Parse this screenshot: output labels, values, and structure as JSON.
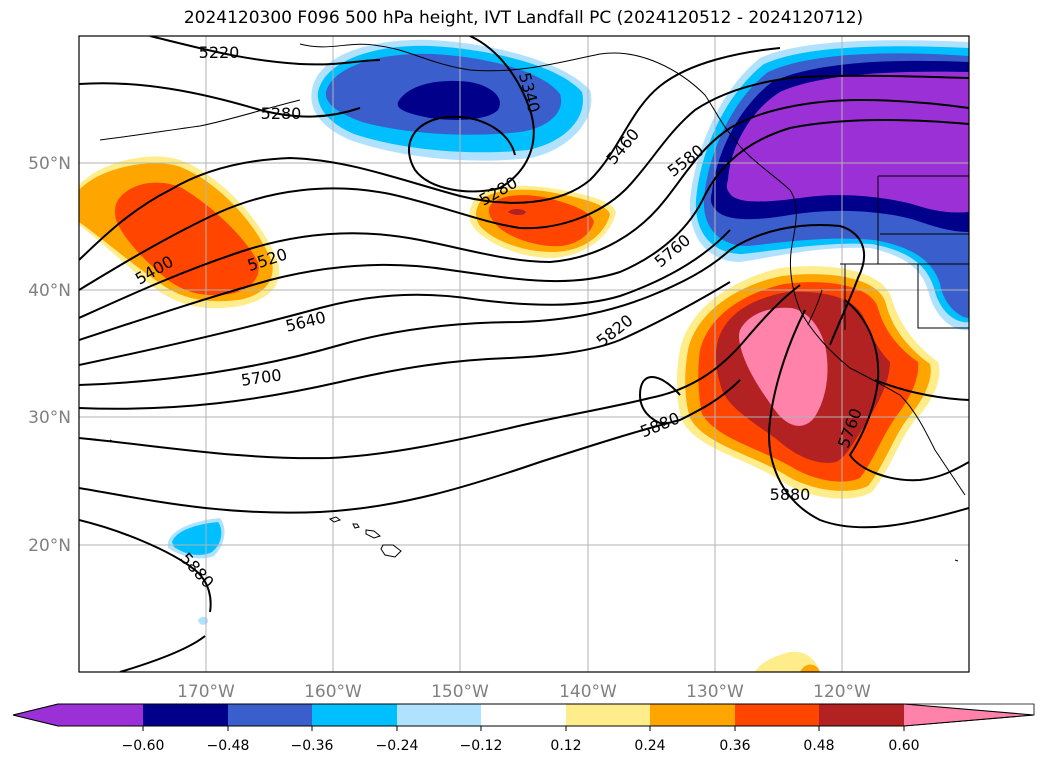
{
  "title": "2024120300 F096 500 hPa height, IVT Landfall PC (2024120512 - 2024120712)",
  "lon_labels": [
    "170°W",
    "160°W",
    "150°W",
    "140°W",
    "130°W",
    "120°W"
  ],
  "lat_labels": [
    "50°N",
    "40°N",
    "30°N",
    "20°N"
  ],
  "contour_labels": [
    "5220",
    "5280",
    "5340",
    "5400",
    "5460",
    "5520",
    "5580",
    "5640",
    "5700",
    "5760",
    "5820",
    "5880",
    "5280",
    "5880",
    "5880",
    "5760"
  ],
  "colorbar": {
    "ticks": [
      "−0.60",
      "−0.48",
      "−0.36",
      "−0.24",
      "−0.12",
      "0.12",
      "0.24",
      "0.36",
      "0.48",
      "0.60"
    ],
    "colors": [
      "#9b30d6",
      "#00008b",
      "#3a5fcd",
      "#00bfff",
      "#b0e2ff",
      "#ffffff",
      "#ffec8b",
      "#ffa500",
      "#ff4500",
      "#b22222",
      "#ff82ab"
    ]
  },
  "shading": {
    "neg_colors": [
      "#b0e2ff",
      "#00bfff",
      "#3a5fcd",
      "#00008b",
      "#9b30d6"
    ],
    "pos_colors": [
      "#ffec8b",
      "#ffa500",
      "#ff4500",
      "#b22222",
      "#ff82ab"
    ]
  }
}
